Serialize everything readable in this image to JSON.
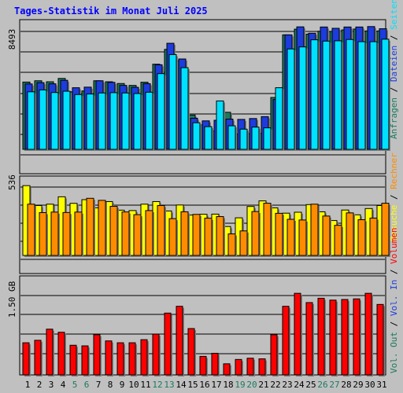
{
  "title": "Tages-Statistik im Monat Juli 2025",
  "chart_data": [
    {
      "type": "bar",
      "panel": "top",
      "ytick": "8493",
      "ylim": [
        0,
        8493
      ],
      "categories": [
        "1",
        "2",
        "3",
        "4",
        "5",
        "6",
        "7",
        "8",
        "9",
        "10",
        "11",
        "12",
        "13",
        "14",
        "15",
        "16",
        "17",
        "18",
        "19",
        "20",
        "21",
        "22",
        "23",
        "24",
        "25",
        "26",
        "27",
        "28",
        "29",
        "30",
        "31"
      ],
      "series": [
        {
          "name": "Anfragen",
          "color": "#1a7a5e",
          "values": [
            4630,
            4720,
            4650,
            4880,
            3960,
            4020,
            4720,
            4650,
            4530,
            4400,
            4620,
            5860,
            6880,
            6100,
            2360,
            1690,
            1260,
            2550,
            1050,
            1090,
            1110,
            3570,
            7880,
            8270,
            7930,
            8130,
            8120,
            8220,
            8280,
            8150,
            8150
          ]
        },
        {
          "name": "Dateien",
          "color": "#1c3cdc",
          "values": [
            4500,
            4590,
            4510,
            4750,
            4240,
            4280,
            4720,
            4610,
            4400,
            4270,
            4520,
            5820,
            7300,
            6220,
            2140,
            1960,
            2000,
            2080,
            2060,
            2120,
            2250,
            3430,
            7880,
            8430,
            7990,
            8420,
            8330,
            8420,
            8420,
            8450,
            8300
          ]
        },
        {
          "name": "Seiten",
          "color": "#00e0ff",
          "values": [
            3960,
            4090,
            3910,
            4000,
            3770,
            3810,
            3880,
            3900,
            3880,
            3840,
            3930,
            5210,
            6520,
            5620,
            1830,
            1560,
            3330,
            1620,
            1390,
            1530,
            1480,
            4240,
            6910,
            7050,
            7540,
            7450,
            7470,
            7560,
            7410,
            7410,
            7580
          ]
        }
      ]
    },
    {
      "type": "bar",
      "panel": "middle",
      "ytick": "536",
      "ylim": [
        0,
        536
      ],
      "categories": [
        "1",
        "2",
        "3",
        "4",
        "5",
        "6",
        "7",
        "8",
        "9",
        "10",
        "11",
        "12",
        "13",
        "14",
        "15",
        "16",
        "17",
        "18",
        "19",
        "20",
        "21",
        "22",
        "23",
        "24",
        "25",
        "26",
        "27",
        "28",
        "29",
        "30",
        "31"
      ],
      "series": [
        {
          "name": "Besuche",
          "color": "#ffff00",
          "values": [
            512,
            366,
            376,
            430,
            382,
            409,
            349,
            395,
            332,
            329,
            376,
            395,
            326,
            370,
            296,
            302,
            303,
            212,
            276,
            359,
            400,
            349,
            310,
            317,
            373,
            320,
            256,
            333,
            298,
            344,
            366
          ]
        },
        {
          "name": "Rechner",
          "color": "#ff8c00",
          "values": [
            376,
            314,
            318,
            315,
            318,
            419,
            404,
            360,
            319,
            299,
            329,
            366,
            270,
            320,
            301,
            273,
            285,
            158,
            180,
            322,
            383,
            309,
            265,
            260,
            376,
            289,
            221,
            312,
            262,
            274,
            383
          ]
        }
      ]
    },
    {
      "type": "bar",
      "panel": "bottom",
      "ytick": "1.50 GB",
      "ylim": [
        0,
        1.5
      ],
      "categories": [
        "1",
        "2",
        "3",
        "4",
        "5",
        "6",
        "7",
        "8",
        "9",
        "10",
        "11",
        "12",
        "13",
        "14",
        "15",
        "16",
        "17",
        "18",
        "19",
        "20",
        "21",
        "22",
        "23",
        "24",
        "25",
        "26",
        "27",
        "28",
        "29",
        "30",
        "31"
      ],
      "series": [
        {
          "name": "Volumen",
          "color": "#ff0000",
          "values": [
            0.52,
            0.56,
            0.74,
            0.69,
            0.48,
            0.47,
            0.65,
            0.55,
            0.52,
            0.52,
            0.57,
            0.66,
            1.0,
            1.11,
            0.75,
            0.3,
            0.35,
            0.18,
            0.25,
            0.27,
            0.26,
            0.65,
            1.11,
            1.32,
            1.17,
            1.24,
            1.21,
            1.22,
            1.23,
            1.32,
            1.14
          ]
        }
      ]
    }
  ],
  "right_legend": {
    "top": [
      {
        "text": "Anfragen",
        "color": "#1a7a5e"
      },
      {
        "text": "Dateien",
        "color": "#1c3cdc"
      },
      {
        "text": "Seiten",
        "color": "#00e0ff"
      }
    ],
    "middle": [
      {
        "text": "Besuche",
        "color": "#ffff00"
      },
      {
        "text": "Rechner",
        "color": "#ff8c00"
      }
    ],
    "bottom": [
      {
        "text": "Vol. Out",
        "color": "#1a7a5e"
      },
      {
        "text": "Vol. In",
        "color": "#1c3cdc"
      },
      {
        "text": "Volumen",
        "color": "#ff0000"
      }
    ],
    "separator": "/",
    "separator_color": "#000000"
  },
  "weekend_days": [
    "5",
    "6",
    "12",
    "13",
    "19",
    "20",
    "26",
    "27"
  ],
  "colors": {
    "background": "#c0c0c0",
    "title": "#0000ff",
    "day_label": "#000000",
    "weekend_label": "#1a7a5e",
    "grid": "#000000"
  }
}
